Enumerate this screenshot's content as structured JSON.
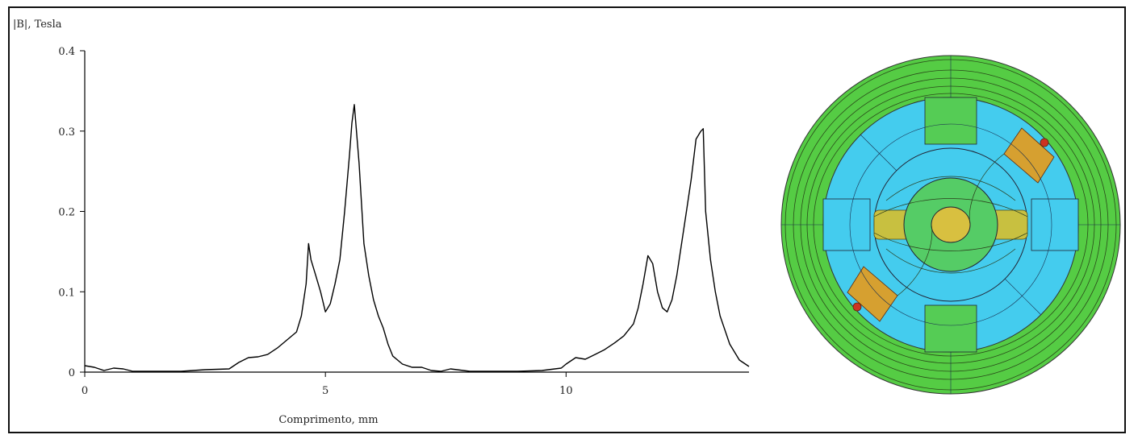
{
  "chart_data": {
    "type": "line",
    "ylabel": "|B|, Tesla",
    "xlabel": "Comprimento, mm",
    "xlim": [
      0,
      13.8
    ],
    "ylim": [
      0,
      0.4
    ],
    "xticks": [
      0,
      5,
      10
    ],
    "xtick_labels": [
      "0",
      "5",
      "10"
    ],
    "yticks": [
      0,
      0.1,
      0.2,
      0.3,
      0.4
    ],
    "ytick_labels": [
      "0",
      "0.1",
      "0.2",
      "0.3",
      "0.4"
    ],
    "grid": false,
    "series": [
      {
        "color": "#000000",
        "x": [
          0,
          0.2,
          0.4,
          0.6,
          0.8,
          1.0,
          1.5,
          2.0,
          2.5,
          3.0,
          3.2,
          3.4,
          3.6,
          3.8,
          4.0,
          4.2,
          4.4,
          4.5,
          4.6,
          4.65,
          4.7,
          4.8,
          4.9,
          5.0,
          5.1,
          5.2,
          5.3,
          5.4,
          5.5,
          5.55,
          5.6,
          5.7,
          5.8,
          5.9,
          6.0,
          6.1,
          6.2,
          6.3,
          6.4,
          6.6,
          6.8,
          7.0,
          7.2,
          7.4,
          7.6,
          8.0,
          8.5,
          9.0,
          9.5,
          9.9,
          10.0,
          10.2,
          10.4,
          10.6,
          10.8,
          11.0,
          11.2,
          11.4,
          11.5,
          11.6,
          11.7,
          11.8,
          11.9,
          12.0,
          12.1,
          12.2,
          12.3,
          12.4,
          12.5,
          12.6,
          12.7,
          12.8,
          12.85,
          12.9,
          13.0,
          13.1,
          13.2,
          13.4,
          13.6,
          13.8
        ],
        "y": [
          0.008,
          0.006,
          0.002,
          0.005,
          0.004,
          0.001,
          0.001,
          0.001,
          0.003,
          0.004,
          0.012,
          0.018,
          0.019,
          0.022,
          0.03,
          0.04,
          0.05,
          0.07,
          0.11,
          0.16,
          0.14,
          0.12,
          0.1,
          0.075,
          0.085,
          0.11,
          0.14,
          0.2,
          0.27,
          0.31,
          0.333,
          0.26,
          0.16,
          0.12,
          0.09,
          0.07,
          0.055,
          0.035,
          0.02,
          0.01,
          0.006,
          0.006,
          0.002,
          0.001,
          0.004,
          0.001,
          0.001,
          0.001,
          0.002,
          0.005,
          0.01,
          0.018,
          0.016,
          0.022,
          0.028,
          0.036,
          0.045,
          0.06,
          0.08,
          0.11,
          0.145,
          0.135,
          0.1,
          0.08,
          0.075,
          0.09,
          0.12,
          0.16,
          0.2,
          0.24,
          0.29,
          0.3,
          0.303,
          0.2,
          0.14,
          0.1,
          0.07,
          0.035,
          0.015,
          0.007
        ]
      }
    ]
  },
  "colors": {
    "frame": "#111111",
    "line": "#000000",
    "field_cyan": "#33ccee",
    "field_green": "#66cc33",
    "field_yellow": "#dddd22",
    "field_orange": "#dd8822",
    "field_red": "#cc2222"
  }
}
